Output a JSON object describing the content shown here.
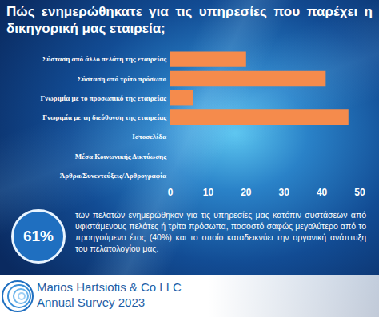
{
  "chart_data": {
    "type": "bar",
    "title": "Πώς ενημερώθηκατε για τις υπηρεσίες που παρέχει η δικηγορική μας εταιρεία;",
    "orientation": "horizontal",
    "categories": [
      "Σύσταση από άλλο πελάτη της εταιρείας",
      "Σύσταση από τρίτο πρόσωπο",
      "Γνωριμία με το προσωπικό της εταιρείας",
      "Γνωριμία με τη διεύθυνση της εταιρείας",
      "Ιστοσελίδα",
      "Μέσα Κοινωνικής Δικτύωσης",
      "Άρθρα/Συνεντεύξεις/Αρθρογραφία"
    ],
    "values": [
      20,
      41,
      6,
      47,
      0,
      0,
      0
    ],
    "color": "#f58b4c",
    "xlim": [
      0,
      50
    ],
    "xticks": [
      0,
      10,
      20,
      30,
      40,
      50
    ],
    "grid": false
  },
  "callout": {
    "figure": "61%",
    "text": "των πελατών ενημερώθηκαν για τις υπηρεσίες μας κατόπιν συστάσεων από υφιστάμενους πελάτες ή τρίτα πρόσωπα, ποσοστό σαφώς μεγαλύτερο από το προηγούμενο έτος (40%) και το οποίο καταδεικνύει την οργανική ανάπτυξη του πελατολογίου μας."
  },
  "footer": {
    "company": "Marios Hartsiotis & Co LLC",
    "subtitle": "Annual Survey 2023"
  }
}
